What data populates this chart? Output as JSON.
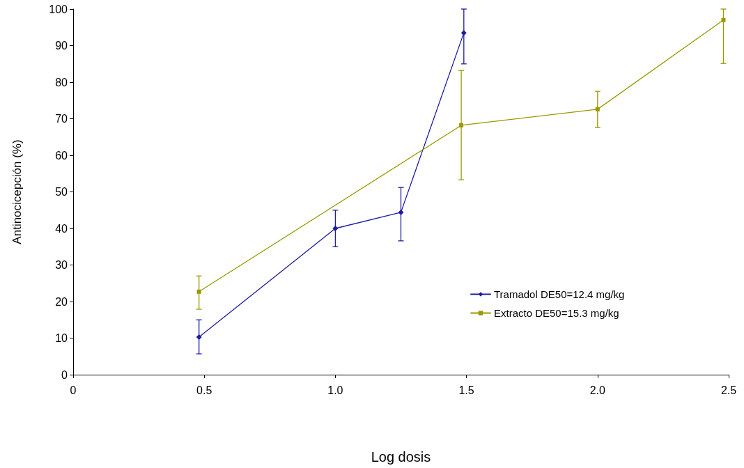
{
  "chart_data": {
    "type": "line",
    "xlabel": "Log dosis",
    "ylabel": "Antinocicepción (%)",
    "xlim": [
      0,
      2.5
    ],
    "xticks": [
      0,
      0.5,
      {
        "value": 1,
        "label": "1.0"
      },
      1.5,
      {
        "value": 2,
        "label": "2.0"
      },
      2.5
    ],
    "ylim": [
      0,
      100
    ],
    "yticks": [
      0,
      10,
      20,
      30,
      40,
      50,
      60,
      70,
      80,
      90,
      100
    ],
    "grid": false,
    "legend": "right",
    "series": [
      {
        "name": "Tramadol DE50=12.4 mg/kg",
        "color": "#1c1ca0",
        "marker": "diamond",
        "x": [
          0.48,
          1.0,
          1.25,
          1.49
        ],
        "values": [
          10.3,
          40,
          44.4,
          93.5
        ],
        "errors": [
          [
            5.7,
            15
          ],
          [
            35,
            45
          ],
          [
            36.6,
            51.2
          ],
          [
            85,
            100
          ]
        ]
      },
      {
        "name": "Extracto DE50=15.3 mg/kg",
        "color": "#999900",
        "marker": "square",
        "x": [
          0.48,
          1.48,
          2.0,
          2.48
        ],
        "values": [
          22.7,
          68.2,
          72.6,
          97
        ],
        "errors": [
          [
            17.9,
            27
          ],
          [
            53.3,
            83.2
          ],
          [
            67.6,
            77.5
          ],
          [
            85.1,
            100
          ]
        ]
      }
    ]
  }
}
